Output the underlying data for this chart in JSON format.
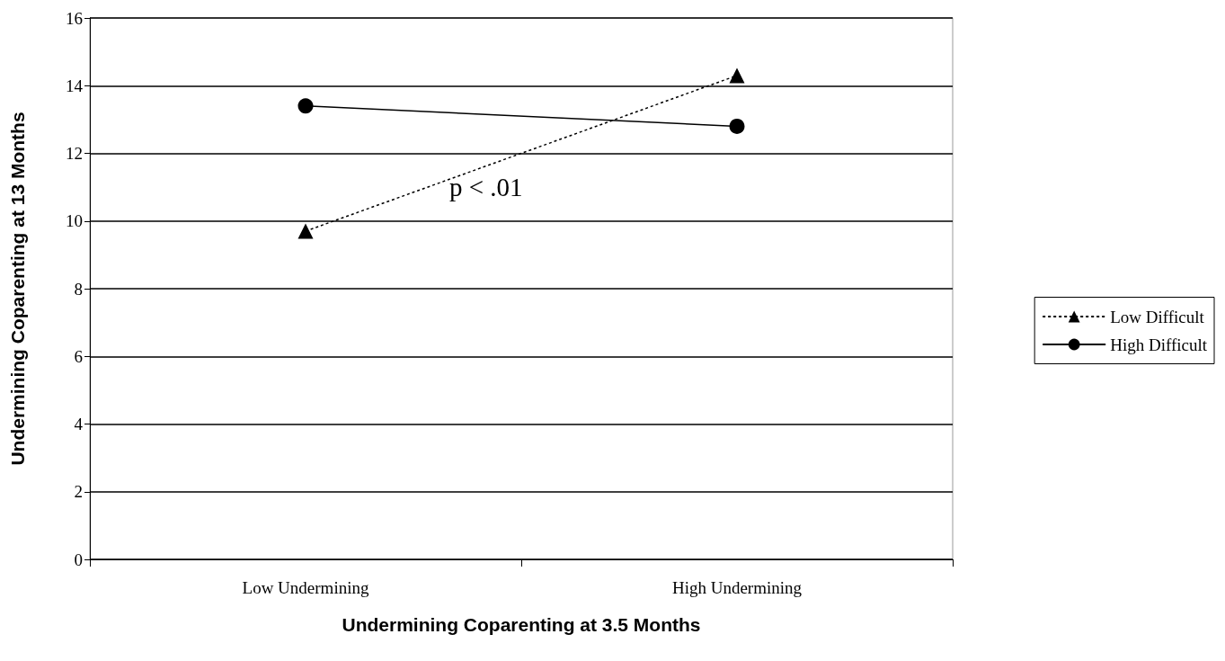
{
  "chart_data": {
    "type": "line",
    "xlabel": "Undermining Coparenting at 3.5 Months",
    "ylabel": "Undermining Coparenting at 13 Months",
    "categories": [
      "Low Undermining",
      "High Undermining"
    ],
    "series": [
      {
        "name": "Low Difficult",
        "color": "#000000",
        "values": [
          9.7,
          14.3
        ],
        "marker": "triangle",
        "line_style": "dotted"
      },
      {
        "name": "High Difficult",
        "color": "#000000",
        "values": [
          13.4,
          12.8
        ],
        "marker": "circle",
        "line_style": "solid"
      }
    ],
    "ylim": [
      0,
      16
    ],
    "yticks": [
      0,
      2,
      4,
      6,
      8,
      10,
      12,
      14,
      16
    ],
    "grid": "y",
    "legend": "right",
    "annotations": [
      "p < .01"
    ]
  }
}
